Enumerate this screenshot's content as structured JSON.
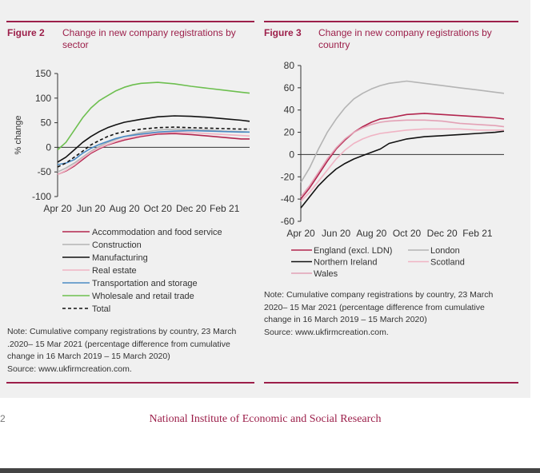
{
  "figures": [
    {
      "label": "Figure 2",
      "title_lines": [
        "Change in new company registrations by",
        "sector"
      ]
    },
    {
      "label": "Figure 3",
      "title_lines": [
        "Change in new company registrations by",
        "country"
      ]
    }
  ],
  "notes": [
    {
      "lines": [
        "Note: Cumulative company registrations by country, 23 March",
        ".2020– 15 Mar 2021 (percentage difference from cumulative",
        "change in 16 March 2019 – 15 March 2020)",
        "Source: www.ukfirmcreation.com."
      ]
    },
    {
      "lines": [
        "Note: Cumulative company registrations by country, 23 March",
        "2020– 15 Mar 2021 (percentage difference from cumulative",
        "change in 16 March 2019 – 15 March 2020)",
        "Source: www.ukfirmcreation.com."
      ]
    }
  ],
  "footer": {
    "page_number": "2",
    "publisher": "National Institute of Economic and Social Research"
  },
  "chart_data": [
    {
      "type": "line",
      "ylabel": "% change",
      "ylim": [
        -100,
        150
      ],
      "yticks": [
        -100,
        -50,
        0,
        50,
        100,
        150
      ],
      "xlim": [
        0,
        11.5
      ],
      "xticks": [
        0,
        2,
        4,
        6,
        8,
        10
      ],
      "xtick_labels": [
        "Apr 20",
        "Jun 20",
        "Aug 20",
        "Oct 20",
        "Dec 20",
        "Feb 21"
      ],
      "legend_position": "bottom",
      "series": [
        {
          "name": "Accommodation and food service",
          "color": "#b2254e",
          "dash": "solid",
          "x": [
            0,
            0.5,
            1,
            1.5,
            2,
            2.5,
            3,
            3.5,
            4,
            5,
            6,
            7,
            8,
            9,
            10,
            11,
            11.5
          ],
          "y": [
            -55,
            -48,
            -38,
            -25,
            -12,
            -3,
            5,
            10,
            15,
            22,
            27,
            28,
            26,
            23,
            20,
            17,
            17
          ]
        },
        {
          "name": "Construction",
          "color": "#b4b4b4",
          "dash": "solid",
          "x": [
            0,
            0.5,
            1,
            1.5,
            2,
            2.5,
            3,
            3.5,
            4,
            5,
            6,
            7,
            8,
            9,
            10,
            11,
            11.5
          ],
          "y": [
            -50,
            -42,
            -32,
            -20,
            -8,
            2,
            10,
            16,
            22,
            30,
            35,
            37,
            36,
            35,
            33,
            32,
            31
          ]
        },
        {
          "name": "Manufacturing",
          "color": "#111111",
          "dash": "solid",
          "x": [
            0,
            0.5,
            1,
            1.5,
            2,
            2.5,
            3,
            3.5,
            4,
            5,
            6,
            7,
            8,
            9,
            10,
            11,
            11.5
          ],
          "y": [
            -30,
            -20,
            -5,
            10,
            22,
            32,
            40,
            46,
            51,
            57,
            62,
            64,
            63,
            61,
            58,
            55,
            53
          ]
        },
        {
          "name": "Real estate",
          "color": "#f0b4c4",
          "dash": "solid",
          "x": [
            0,
            0.5,
            1,
            1.5,
            2,
            2.5,
            3,
            3.5,
            4,
            5,
            6,
            7,
            8,
            9,
            10,
            11,
            11.5
          ],
          "y": [
            -55,
            -47,
            -36,
            -22,
            -10,
            -1,
            6,
            12,
            17,
            24,
            29,
            31,
            30,
            28,
            26,
            24,
            23
          ]
        },
        {
          "name": "Transportation and storage",
          "color": "#4a8ac4",
          "dash": "solid",
          "x": [
            0,
            0.5,
            1,
            1.5,
            2,
            2.5,
            3,
            3.5,
            4,
            5,
            6,
            7,
            8,
            9,
            10,
            11,
            11.5
          ],
          "y": [
            -35,
            -32,
            -25,
            -12,
            -2,
            6,
            12,
            18,
            22,
            27,
            31,
            33,
            34,
            33,
            32,
            31,
            31
          ]
        },
        {
          "name": "Wholesale and retail trade",
          "color": "#6dbf4f",
          "dash": "solid",
          "x": [
            0,
            0.5,
            1,
            1.5,
            2,
            2.5,
            3,
            3.5,
            4,
            4.5,
            5,
            6,
            7,
            8,
            9,
            10,
            11,
            11.5
          ],
          "y": [
            -5,
            10,
            35,
            60,
            80,
            95,
            105,
            115,
            122,
            127,
            130,
            132,
            129,
            124,
            120,
            116,
            112,
            110
          ]
        },
        {
          "name": "Total",
          "color": "#111111",
          "dash": "dashed",
          "x": [
            0,
            0.5,
            1,
            1.5,
            2,
            2.5,
            3,
            3.5,
            4,
            5,
            6,
            7,
            8,
            9,
            10,
            11,
            11.5
          ],
          "y": [
            -40,
            -32,
            -20,
            -8,
            5,
            14,
            22,
            28,
            32,
            37,
            40,
            41,
            40,
            39,
            38,
            37,
            37
          ]
        }
      ]
    },
    {
      "type": "line",
      "ylim": [
        -60,
        80
      ],
      "yticks": [
        -60,
        -40,
        -20,
        0,
        20,
        40,
        60,
        80
      ],
      "xlim": [
        0,
        11.5
      ],
      "xticks": [
        0,
        2,
        4,
        6,
        8,
        10
      ],
      "xtick_labels": [
        "Apr 20",
        "Jun 20",
        "Aug 20",
        "Oct 20",
        "Dec 20",
        "Feb 21"
      ],
      "legend_position": "bottom",
      "series": [
        {
          "name": "England (excl. LDN)",
          "color": "#b2254e",
          "dash": "solid",
          "x": [
            0,
            0.5,
            1,
            1.5,
            2,
            2.5,
            3,
            3.5,
            4,
            4.5,
            5,
            6,
            7,
            8,
            9,
            10,
            11,
            11.5
          ],
          "y": [
            -40,
            -30,
            -18,
            -6,
            5,
            13,
            20,
            25,
            29,
            32,
            33,
            36,
            37,
            36,
            35,
            34,
            33,
            32
          ]
        },
        {
          "name": "London",
          "color": "#b4b4b4",
          "dash": "solid",
          "x": [
            0,
            0.5,
            1,
            1.5,
            2,
            2.5,
            3,
            3.5,
            4,
            4.5,
            5,
            6,
            7,
            8,
            9,
            10,
            11,
            11.5
          ],
          "y": [
            -25,
            -12,
            5,
            20,
            32,
            42,
            50,
            55,
            59,
            62,
            64,
            66,
            64,
            62,
            60,
            58,
            56,
            55
          ]
        },
        {
          "name": "Northern Ireland",
          "color": "#111111",
          "dash": "solid",
          "x": [
            0,
            0.5,
            1,
            1.5,
            2,
            2.5,
            3,
            3.5,
            4,
            4.5,
            5,
            6,
            7,
            8,
            9,
            10,
            11,
            11.5
          ],
          "y": [
            -48,
            -38,
            -28,
            -20,
            -13,
            -8,
            -4,
            -1,
            2,
            5,
            10,
            14,
            16,
            17,
            18,
            19,
            20,
            21
          ]
        },
        {
          "name": "Scotland",
          "color": "#f0b4c4",
          "dash": "solid",
          "x": [
            0,
            0.5,
            1,
            1.5,
            2,
            2.5,
            3,
            3.5,
            4,
            4.5,
            5,
            6,
            7,
            8,
            9,
            10,
            11,
            11.5
          ],
          "y": [
            -42,
            -34,
            -24,
            -14,
            -4,
            4,
            10,
            14,
            17,
            19,
            20,
            22,
            23,
            23,
            23,
            22,
            22,
            22
          ]
        },
        {
          "name": "Wales",
          "color": "#e3a1b5",
          "dash": "solid",
          "x": [
            0,
            0.5,
            1,
            1.5,
            2,
            2.5,
            3,
            3.5,
            4,
            4.5,
            5,
            6,
            7,
            8,
            9,
            10,
            11,
            11.5
          ],
          "y": [
            -38,
            -28,
            -16,
            -4,
            6,
            14,
            20,
            24,
            27,
            29,
            30,
            31,
            31,
            30,
            28,
            27,
            26,
            25
          ]
        }
      ]
    }
  ]
}
